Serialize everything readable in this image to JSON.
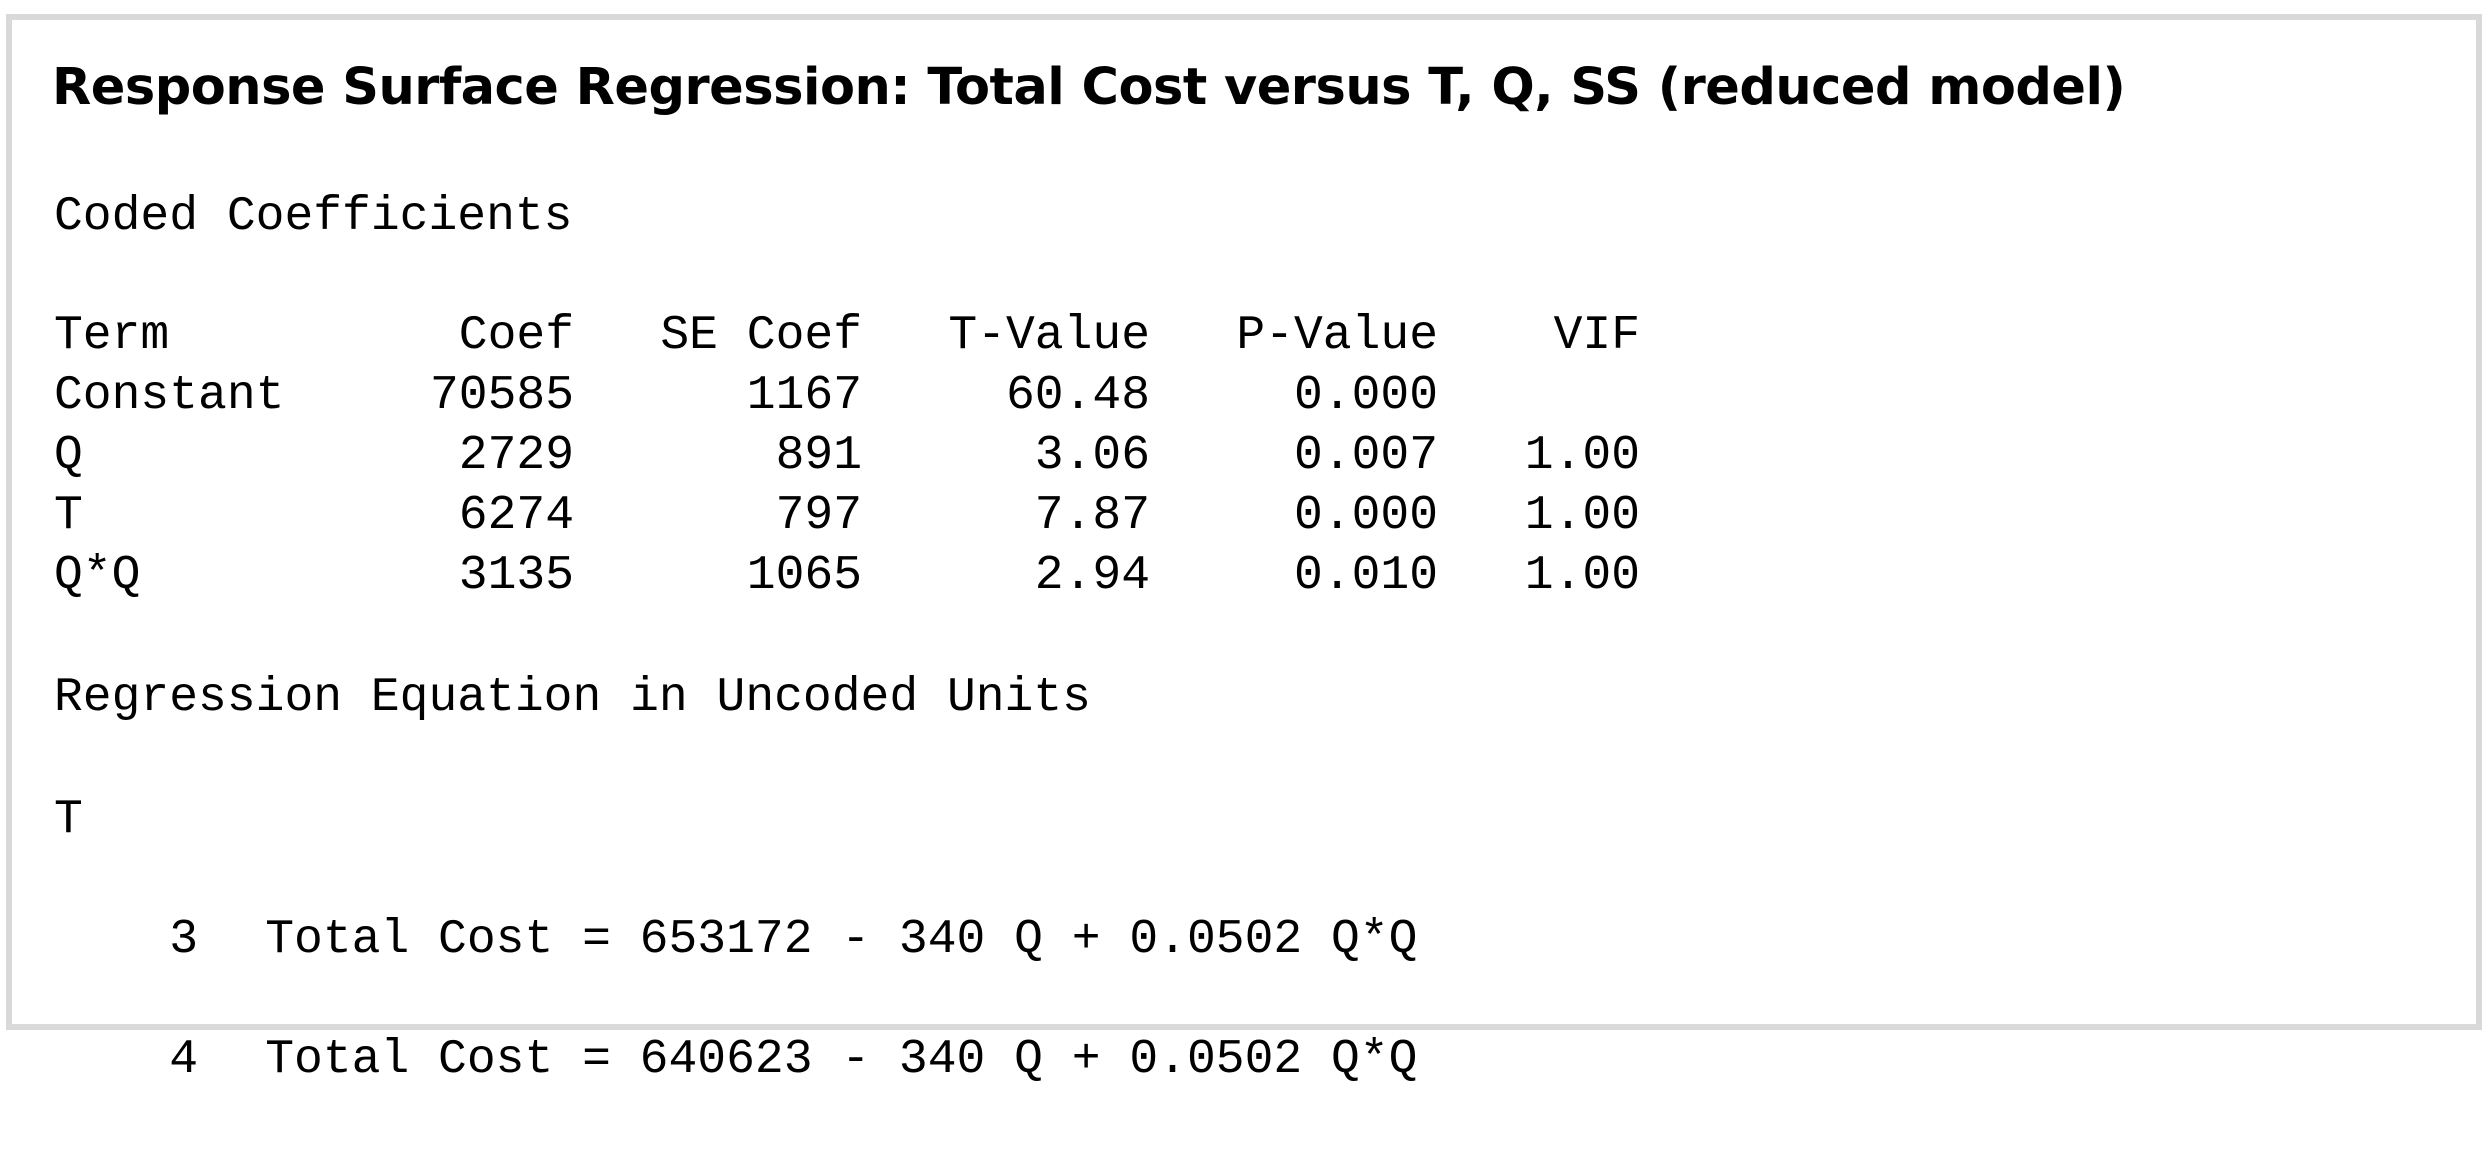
{
  "title": "Response Surface Regression: Total Cost versus T, Q, SS (reduced model)",
  "coded_coefficients": {
    "heading": "Coded Coefficients",
    "columns": [
      "Term",
      "Coef",
      "SE Coef",
      "T-Value",
      "P-Value",
      "VIF"
    ],
    "rows": [
      [
        "Constant",
        "70585",
        "1167",
        "60.48",
        "0.000",
        ""
      ],
      [
        "Q",
        "2729",
        "891",
        "3.06",
        "0.007",
        "1.00"
      ],
      [
        "T",
        "6274",
        "797",
        "7.87",
        "0.000",
        "1.00"
      ],
      [
        "Q*Q",
        "3135",
        "1065",
        "2.94",
        "0.010",
        "1.00"
      ]
    ]
  },
  "regression_equation": {
    "heading": "Regression Equation in Uncoded Units",
    "factor_label": "T",
    "equations": [
      {
        "level": "3",
        "text": "Total Cost = 653172 - 340 Q + 0.0502 Q*Q"
      },
      {
        "level": "4",
        "text": "Total Cost = 640623 - 340 Q + 0.0502 Q*Q"
      }
    ]
  }
}
